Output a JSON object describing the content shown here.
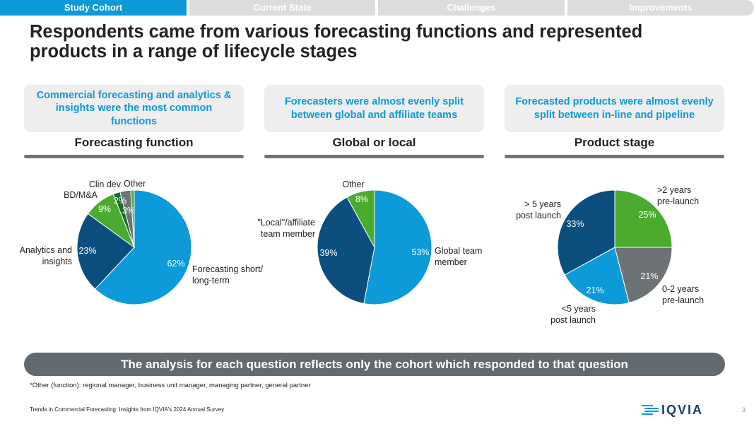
{
  "tabs": [
    {
      "label": "Study Cohort",
      "active": true
    },
    {
      "label": "Current State",
      "active": false
    },
    {
      "label": "Challenges",
      "active": false
    },
    {
      "label": "Improvements",
      "active": false
    }
  ],
  "title": "Respondents came from various forecasting functions and represented products in a range of lifecycle stages",
  "sections": [
    {
      "callout": "Commercial forecasting and analytics & insights were the most common functions",
      "heading": "Forecasting function"
    },
    {
      "callout": "Forecasters were almost evenly split between global and affiliate teams",
      "heading": "Global or local"
    },
    {
      "callout": "Forecasted products were almost evenly split between in-line and pipeline",
      "heading": "Product stage"
    }
  ],
  "chart_data": [
    {
      "type": "pie",
      "title": "Forecasting function",
      "slices": [
        {
          "label": "Forecasting short/ long-term",
          "value": 62,
          "display": "62%",
          "color": "#0c9ad8"
        },
        {
          "label": "Analytics and insights",
          "value": 23,
          "display": "23%",
          "color": "#0b4f7e"
        },
        {
          "label": "BD/M&A",
          "value": 9,
          "display": "9%",
          "color": "#4aab2f"
        },
        {
          "label": "Clin dev",
          "value": 2,
          "display": "2%",
          "color": "#1a6e2c"
        },
        {
          "label": "Other",
          "value": 3,
          "display": "3%",
          "color": "#6d7275"
        },
        {
          "label": "",
          "value": 1,
          "display": "",
          "color": "#4aab2f"
        }
      ]
    },
    {
      "type": "pie",
      "title": "Global or local",
      "slices": [
        {
          "label": "Global team member",
          "value": 53,
          "display": "53%",
          "color": "#0c9ad8"
        },
        {
          "label": "\"Local\"/affiliate team member",
          "value": 39,
          "display": "39%",
          "color": "#0b4f7e"
        },
        {
          "label": "Other",
          "value": 8,
          "display": "8%",
          "color": "#4aab2f"
        }
      ]
    },
    {
      "type": "pie",
      "title": "Product stage",
      "slices": [
        {
          "label": ">2 years pre-launch",
          "value": 25,
          "display": "25%",
          "color": "#4aab2f"
        },
        {
          "label": "0-2 years pre-launch",
          "value": 21,
          "display": "21%",
          "color": "#6d7275"
        },
        {
          "label": "<5 years post launch",
          "value": 21,
          "display": "21%",
          "color": "#0c9ad8"
        },
        {
          "label": "> 5 years post launch",
          "value": 33,
          "display": "33%",
          "color": "#0b4f7e"
        }
      ]
    }
  ],
  "banner": "The analysis for each question reflects only the cohort which responded to that question",
  "footnote": "*Other (function): regional manager, business unit manager, managing partner, general partner",
  "source": "Trends in Commercial Forecasting: Insights from IQVIA's 2024 Annual Survey",
  "logo": {
    "text": "IQVIA"
  },
  "page_number": "3"
}
